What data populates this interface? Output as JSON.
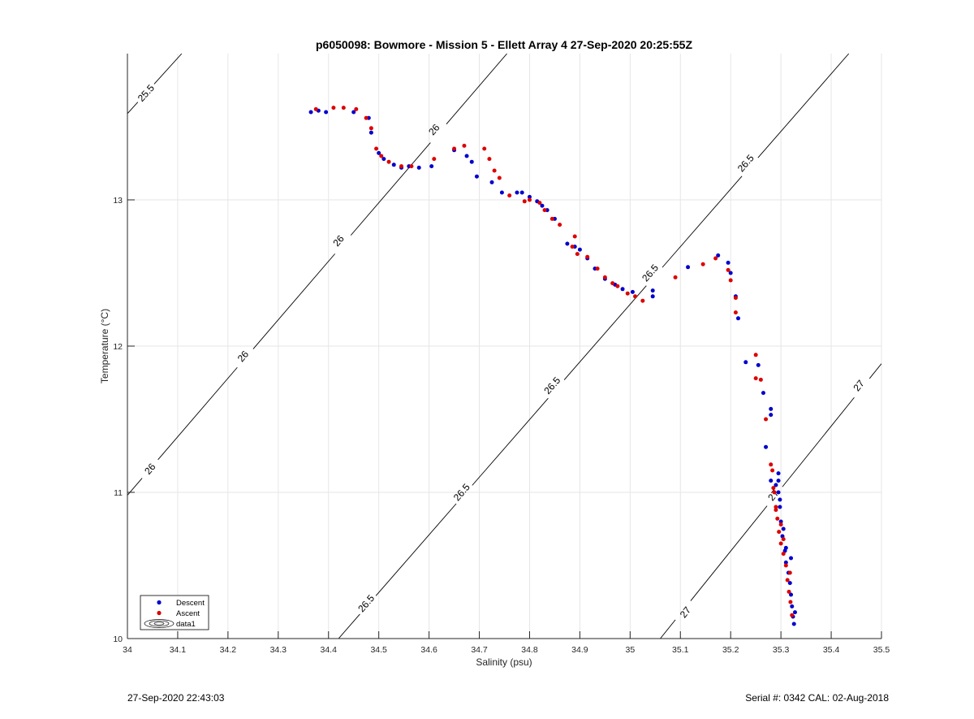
{
  "chart_data": {
    "type": "scatter",
    "title": "p6050098: Bowmore - Mission 5 - Ellett Array 4 27-Sep-2020 20:25:55Z",
    "xlabel": "Salinity (psu)",
    "ylabel": "Temperature (°C)",
    "xlim": [
      34,
      35.5
    ],
    "ylim": [
      10,
      14
    ],
    "xticks": [
      "34",
      "34.1",
      "34.2",
      "34.3",
      "34.4",
      "34.5",
      "34.6",
      "34.7",
      "34.8",
      "34.9",
      "35",
      "35.1",
      "35.2",
      "35.3",
      "35.4",
      "35.5"
    ],
    "yticks": [
      "10",
      "11",
      "12",
      "13"
    ],
    "grid": true,
    "legend_position": "bottom-left",
    "legend": [
      "Descent",
      "Ascent",
      "data1"
    ],
    "colors": {
      "descent": "#0000cc",
      "ascent": "#dd0000",
      "contour": "#000000",
      "grid": "#e6e6e6"
    },
    "contours": [
      {
        "level": "25.5",
        "points": [
          [
            34.0,
            13.59
          ],
          [
            34.108,
            14.0
          ]
        ],
        "labels": [
          [
            34.037,
            13.73
          ]
        ]
      },
      {
        "level": "26",
        "points": [
          [
            34.0,
            10.98
          ],
          [
            34.755,
            14.0
          ]
        ],
        "labels": [
          [
            34.045,
            11.16
          ],
          [
            34.23,
            11.93
          ],
          [
            34.42,
            12.72
          ],
          [
            34.61,
            13.48
          ]
        ]
      },
      {
        "level": "26.5",
        "points": [
          [
            34.42,
            10.0
          ],
          [
            35.435,
            14.0
          ]
        ],
        "labels": [
          [
            34.475,
            10.24
          ],
          [
            34.665,
            11.0
          ],
          [
            34.845,
            11.73
          ],
          [
            35.04,
            12.5
          ],
          [
            35.23,
            13.25
          ]
        ]
      },
      {
        "level": "27",
        "points": [
          [
            35.06,
            10.0
          ],
          [
            35.5,
            11.88
          ]
        ],
        "labels": [
          [
            35.11,
            10.18
          ],
          [
            35.285,
            10.98
          ],
          [
            35.455,
            11.73
          ]
        ]
      }
    ],
    "series": [
      {
        "name": "Descent",
        "points": [
          [
            34.365,
            13.6
          ],
          [
            34.38,
            13.61
          ],
          [
            34.395,
            13.6
          ],
          [
            34.45,
            13.6
          ],
          [
            34.48,
            13.56
          ],
          [
            34.485,
            13.46
          ],
          [
            34.5,
            13.32
          ],
          [
            34.51,
            13.28
          ],
          [
            34.53,
            13.24
          ],
          [
            34.545,
            13.22
          ],
          [
            34.56,
            13.23
          ],
          [
            34.58,
            13.22
          ],
          [
            34.605,
            13.23
          ],
          [
            34.65,
            13.34
          ],
          [
            34.675,
            13.3
          ],
          [
            34.685,
            13.26
          ],
          [
            34.695,
            13.16
          ],
          [
            34.725,
            13.12
          ],
          [
            34.745,
            13.05
          ],
          [
            34.775,
            13.05
          ],
          [
            34.785,
            13.05
          ],
          [
            34.8,
            13.02
          ],
          [
            34.815,
            12.99
          ],
          [
            34.825,
            12.96
          ],
          [
            34.835,
            12.93
          ],
          [
            34.85,
            12.87
          ],
          [
            34.875,
            12.7
          ],
          [
            34.89,
            12.68
          ],
          [
            34.9,
            12.66
          ],
          [
            34.915,
            12.6
          ],
          [
            34.93,
            12.53
          ],
          [
            34.95,
            12.46
          ],
          [
            34.97,
            12.42
          ],
          [
            34.985,
            12.39
          ],
          [
            35.005,
            12.37
          ],
          [
            35.045,
            12.38
          ],
          [
            35.045,
            12.34
          ],
          [
            35.115,
            12.54
          ],
          [
            35.175,
            12.62
          ],
          [
            35.195,
            12.57
          ],
          [
            35.2,
            12.5
          ],
          [
            35.21,
            12.34
          ],
          [
            35.215,
            12.19
          ],
          [
            35.23,
            11.89
          ],
          [
            35.255,
            11.87
          ],
          [
            35.265,
            11.68
          ],
          [
            35.28,
            11.57
          ],
          [
            35.28,
            11.53
          ],
          [
            35.27,
            11.31
          ],
          [
            35.28,
            11.08
          ],
          [
            35.29,
            11.05
          ],
          [
            35.295,
            11.13
          ],
          [
            35.295,
            11.0
          ],
          [
            35.298,
            10.9
          ],
          [
            35.3,
            10.8
          ],
          [
            35.303,
            10.7
          ],
          [
            35.308,
            10.6
          ],
          [
            35.31,
            10.52
          ],
          [
            35.315,
            10.45
          ],
          [
            35.318,
            10.38
          ],
          [
            35.32,
            10.3
          ],
          [
            35.322,
            10.22
          ],
          [
            35.324,
            10.15
          ],
          [
            35.326,
            10.1
          ],
          [
            35.328,
            10.18
          ],
          [
            35.32,
            10.55
          ],
          [
            35.31,
            10.62
          ],
          [
            35.305,
            10.75
          ],
          [
            35.298,
            10.95
          ],
          [
            35.295,
            11.08
          ]
        ]
      },
      {
        "name": "Ascent",
        "points": [
          [
            34.375,
            13.62
          ],
          [
            34.41,
            13.63
          ],
          [
            34.43,
            13.63
          ],
          [
            34.455,
            13.62
          ],
          [
            34.475,
            13.56
          ],
          [
            34.485,
            13.49
          ],
          [
            34.495,
            13.35
          ],
          [
            34.505,
            13.3
          ],
          [
            34.52,
            13.26
          ],
          [
            34.545,
            13.23
          ],
          [
            34.565,
            13.23
          ],
          [
            34.61,
            13.28
          ],
          [
            34.65,
            13.35
          ],
          [
            34.67,
            13.37
          ],
          [
            34.71,
            13.35
          ],
          [
            34.72,
            13.28
          ],
          [
            34.73,
            13.2
          ],
          [
            34.74,
            13.15
          ],
          [
            34.76,
            13.03
          ],
          [
            34.79,
            12.99
          ],
          [
            34.8,
            13.0
          ],
          [
            34.82,
            12.98
          ],
          [
            34.83,
            12.93
          ],
          [
            34.845,
            12.87
          ],
          [
            34.86,
            12.83
          ],
          [
            34.885,
            12.68
          ],
          [
            34.89,
            12.75
          ],
          [
            34.895,
            12.63
          ],
          [
            34.915,
            12.61
          ],
          [
            34.935,
            12.53
          ],
          [
            34.95,
            12.47
          ],
          [
            34.965,
            12.43
          ],
          [
            34.975,
            12.41
          ],
          [
            34.995,
            12.36
          ],
          [
            35.01,
            12.34
          ],
          [
            35.025,
            12.31
          ],
          [
            35.09,
            12.47
          ],
          [
            35.145,
            12.56
          ],
          [
            35.17,
            12.6
          ],
          [
            35.195,
            12.52
          ],
          [
            35.2,
            12.45
          ],
          [
            35.21,
            12.33
          ],
          [
            35.21,
            12.23
          ],
          [
            35.25,
            11.94
          ],
          [
            35.25,
            11.78
          ],
          [
            35.26,
            11.77
          ],
          [
            35.27,
            11.5
          ],
          [
            35.28,
            11.19
          ],
          [
            35.283,
            11.15
          ],
          [
            35.287,
            11.0
          ],
          [
            35.29,
            10.88
          ],
          [
            35.293,
            10.82
          ],
          [
            35.296,
            10.73
          ],
          [
            35.3,
            10.65
          ],
          [
            35.305,
            10.58
          ],
          [
            35.31,
            10.5
          ],
          [
            35.313,
            10.4
          ],
          [
            35.316,
            10.32
          ],
          [
            35.319,
            10.25
          ],
          [
            35.322,
            10.16
          ],
          [
            35.318,
            10.45
          ],
          [
            35.305,
            10.68
          ],
          [
            35.3,
            10.78
          ],
          [
            35.29,
            10.9
          ],
          [
            35.285,
            11.03
          ]
        ]
      }
    ]
  },
  "footer": {
    "left": "27-Sep-2020 22:43:03",
    "right": "Serial #: 0342  CAL: 02-Aug-2018"
  }
}
